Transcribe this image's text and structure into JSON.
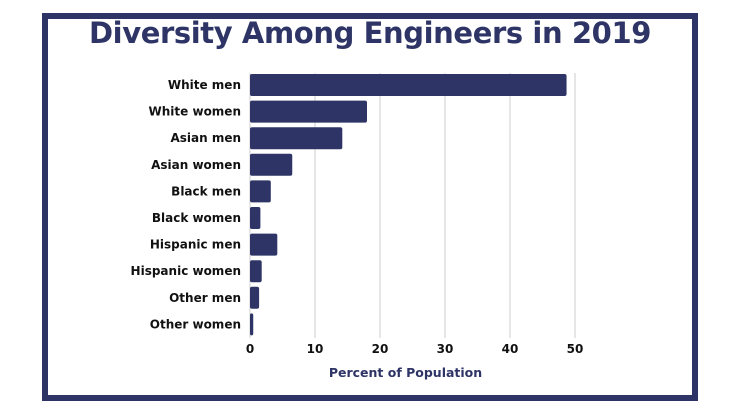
{
  "colors": {
    "bar": "#2e3566",
    "frame": "#2e3566",
    "grid": "#cccccc",
    "title": "#2e3566"
  },
  "chart_data": {
    "type": "bar",
    "orientation": "horizontal",
    "title": "Diversity Among Engineers in 2019",
    "xlabel": "Percent of Population",
    "ylabel": "",
    "xlim": [
      0,
      50
    ],
    "xticks": [
      0,
      10,
      20,
      30,
      40,
      50
    ],
    "grid": true,
    "legend": "none",
    "categories": [
      "White men",
      "White women",
      "Asian men",
      "Asian women",
      "Black men",
      "Black women",
      "Hispanic men",
      "Hispanic women",
      "Other men",
      "Other women"
    ],
    "values": [
      48.7,
      18.0,
      14.2,
      6.5,
      3.2,
      1.6,
      4.2,
      1.8,
      1.4,
      0.5
    ]
  }
}
